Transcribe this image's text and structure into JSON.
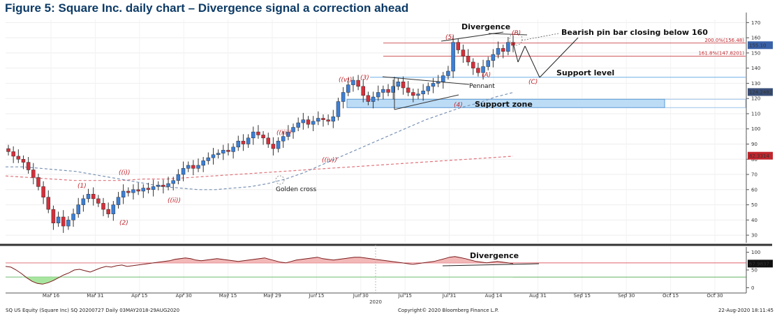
{
  "title": "Figure 5: Square Inc. daily chart – Divergence signal a correction ahead",
  "footer": {
    "left": "SQ US Equity (Square Inc) SQ 20200727  Daily 03MAY2018-29AUG2020",
    "middle": "Copyright© 2020 Bloomberg Finance L.P.",
    "right": "22-Aug-2020 18:11:45"
  },
  "colors": {
    "up": "#3b7fd6",
    "down": "#d62f3a",
    "ma50": "#7a93b5",
    "ma200": "#e0727a",
    "rsi_line": "#7a1a1a",
    "rsi_fill": "#f2b8b8",
    "rsi_low_fill": "#a8e6a0",
    "support_zone": "#bcdcf6",
    "price_tag": "#3a62a8"
  },
  "chart_data": {
    "type": "candlestick",
    "x_tick_labels": [
      "Mar 16",
      "Mar 31",
      "Apr 15",
      "Apr 30",
      "May 15",
      "May 29",
      "Jun 15",
      "Jun 30",
      "Jul 15",
      "Jul 31",
      "Aug 14",
      "Aug 31",
      "Sep 15",
      "Sep 30",
      "Oct 15",
      "Oct 30"
    ],
    "x_year_label": "2020",
    "price_axis": {
      "min": 25,
      "max": 172,
      "ticks": [
        30,
        40,
        50,
        60,
        70,
        80,
        90,
        100,
        110,
        120,
        130,
        140,
        150,
        160,
        170
      ]
    },
    "rsi_axis": {
      "min": -15,
      "max": 115,
      "ticks": [
        0,
        50,
        100
      ],
      "levels": [
        70,
        30
      ]
    },
    "price_tags": [
      {
        "label": "155.10",
        "value": 155.1,
        "kind": "last"
      },
      {
        "label": "124.2482",
        "value": 124.2482,
        "kind": "ma50"
      },
      {
        "label": "82.3314",
        "value": 82.3314,
        "kind": "ma200"
      }
    ],
    "rsi_tag": {
      "label": "67.9837",
      "value": 67.98
    },
    "closes": [
      85,
      82,
      80,
      78,
      73,
      68,
      62,
      55,
      47,
      38,
      42,
      36,
      40,
      44,
      50,
      54,
      57,
      54,
      51,
      47,
      44,
      50,
      55,
      59,
      58,
      60,
      59,
      61,
      60,
      62,
      63,
      62,
      64,
      66,
      70,
      74,
      76,
      74,
      76,
      79,
      81,
      83,
      84,
      86,
      85,
      88,
      92,
      90,
      94,
      98,
      96,
      94,
      90,
      87,
      92,
      95,
      98,
      101,
      104,
      106,
      103,
      105,
      107,
      106,
      105,
      108,
      118,
      124,
      129,
      132,
      128,
      122,
      118,
      121,
      124,
      126,
      124,
      128,
      131,
      127,
      124,
      122,
      123,
      125,
      128,
      130,
      131,
      135,
      138,
      157,
      152,
      148,
      144,
      140,
      137,
      141,
      145,
      149,
      153,
      151,
      157,
      155
    ],
    "ma50": [
      75,
      75,
      74,
      73,
      72,
      70,
      68,
      66,
      64,
      62,
      61,
      60,
      60,
      61,
      62,
      64,
      67,
      71,
      76,
      81,
      86,
      91,
      96,
      101,
      106,
      110,
      114,
      117,
      121,
      124
    ],
    "ma200": [
      69,
      68,
      67,
      66,
      66,
      66,
      67,
      67,
      68,
      69,
      70,
      71,
      72,
      73,
      74,
      75,
      76,
      77,
      78,
      79,
      80,
      81,
      82
    ],
    "rsi": [
      60,
      58,
      50,
      40,
      28,
      18,
      12,
      10,
      14,
      20,
      28,
      36,
      42,
      50,
      52,
      48,
      44,
      50,
      56,
      60,
      58,
      62,
      64,
      60,
      62,
      64,
      66,
      68,
      70,
      72,
      74,
      76,
      80,
      82,
      84,
      82,
      78,
      76,
      78,
      80,
      82,
      80,
      78,
      76,
      74,
      76,
      78,
      80,
      82,
      84,
      80,
      76,
      72,
      70,
      74,
      78,
      80,
      82,
      84,
      86,
      82,
      80,
      78,
      80,
      82,
      84,
      86,
      86,
      84,
      82,
      80,
      78,
      76,
      74,
      72,
      70,
      68,
      66,
      68,
      70,
      72,
      74,
      78,
      82,
      86,
      88,
      85,
      82,
      78,
      74,
      72,
      70,
      72,
      74,
      72,
      70,
      68
    ],
    "fib_lines": [
      {
        "label": "200.0%(156.48)",
        "value": 156.48
      },
      {
        "label": "161.8%(147.8201)",
        "value": 147.82
      }
    ],
    "support_level": 134,
    "support_zone": [
      114,
      119.5
    ],
    "annotations": {
      "divergence_top": "Divergence",
      "divergence_rsi": "Divergence",
      "bearish": "Bearish pin bar closing below 160",
      "support_level": "Support level",
      "support_zone": "Support zone",
      "pennant": "Pennant",
      "golden_cross": "Golden cross",
      "wave_labels": [
        "(1)",
        "(2)",
        "((i))",
        "((ii))",
        "((iii))",
        "((iv))",
        "((v))",
        "(3)",
        "(4)",
        "(5)",
        "(A)",
        "(B)",
        "(C)"
      ]
    }
  }
}
